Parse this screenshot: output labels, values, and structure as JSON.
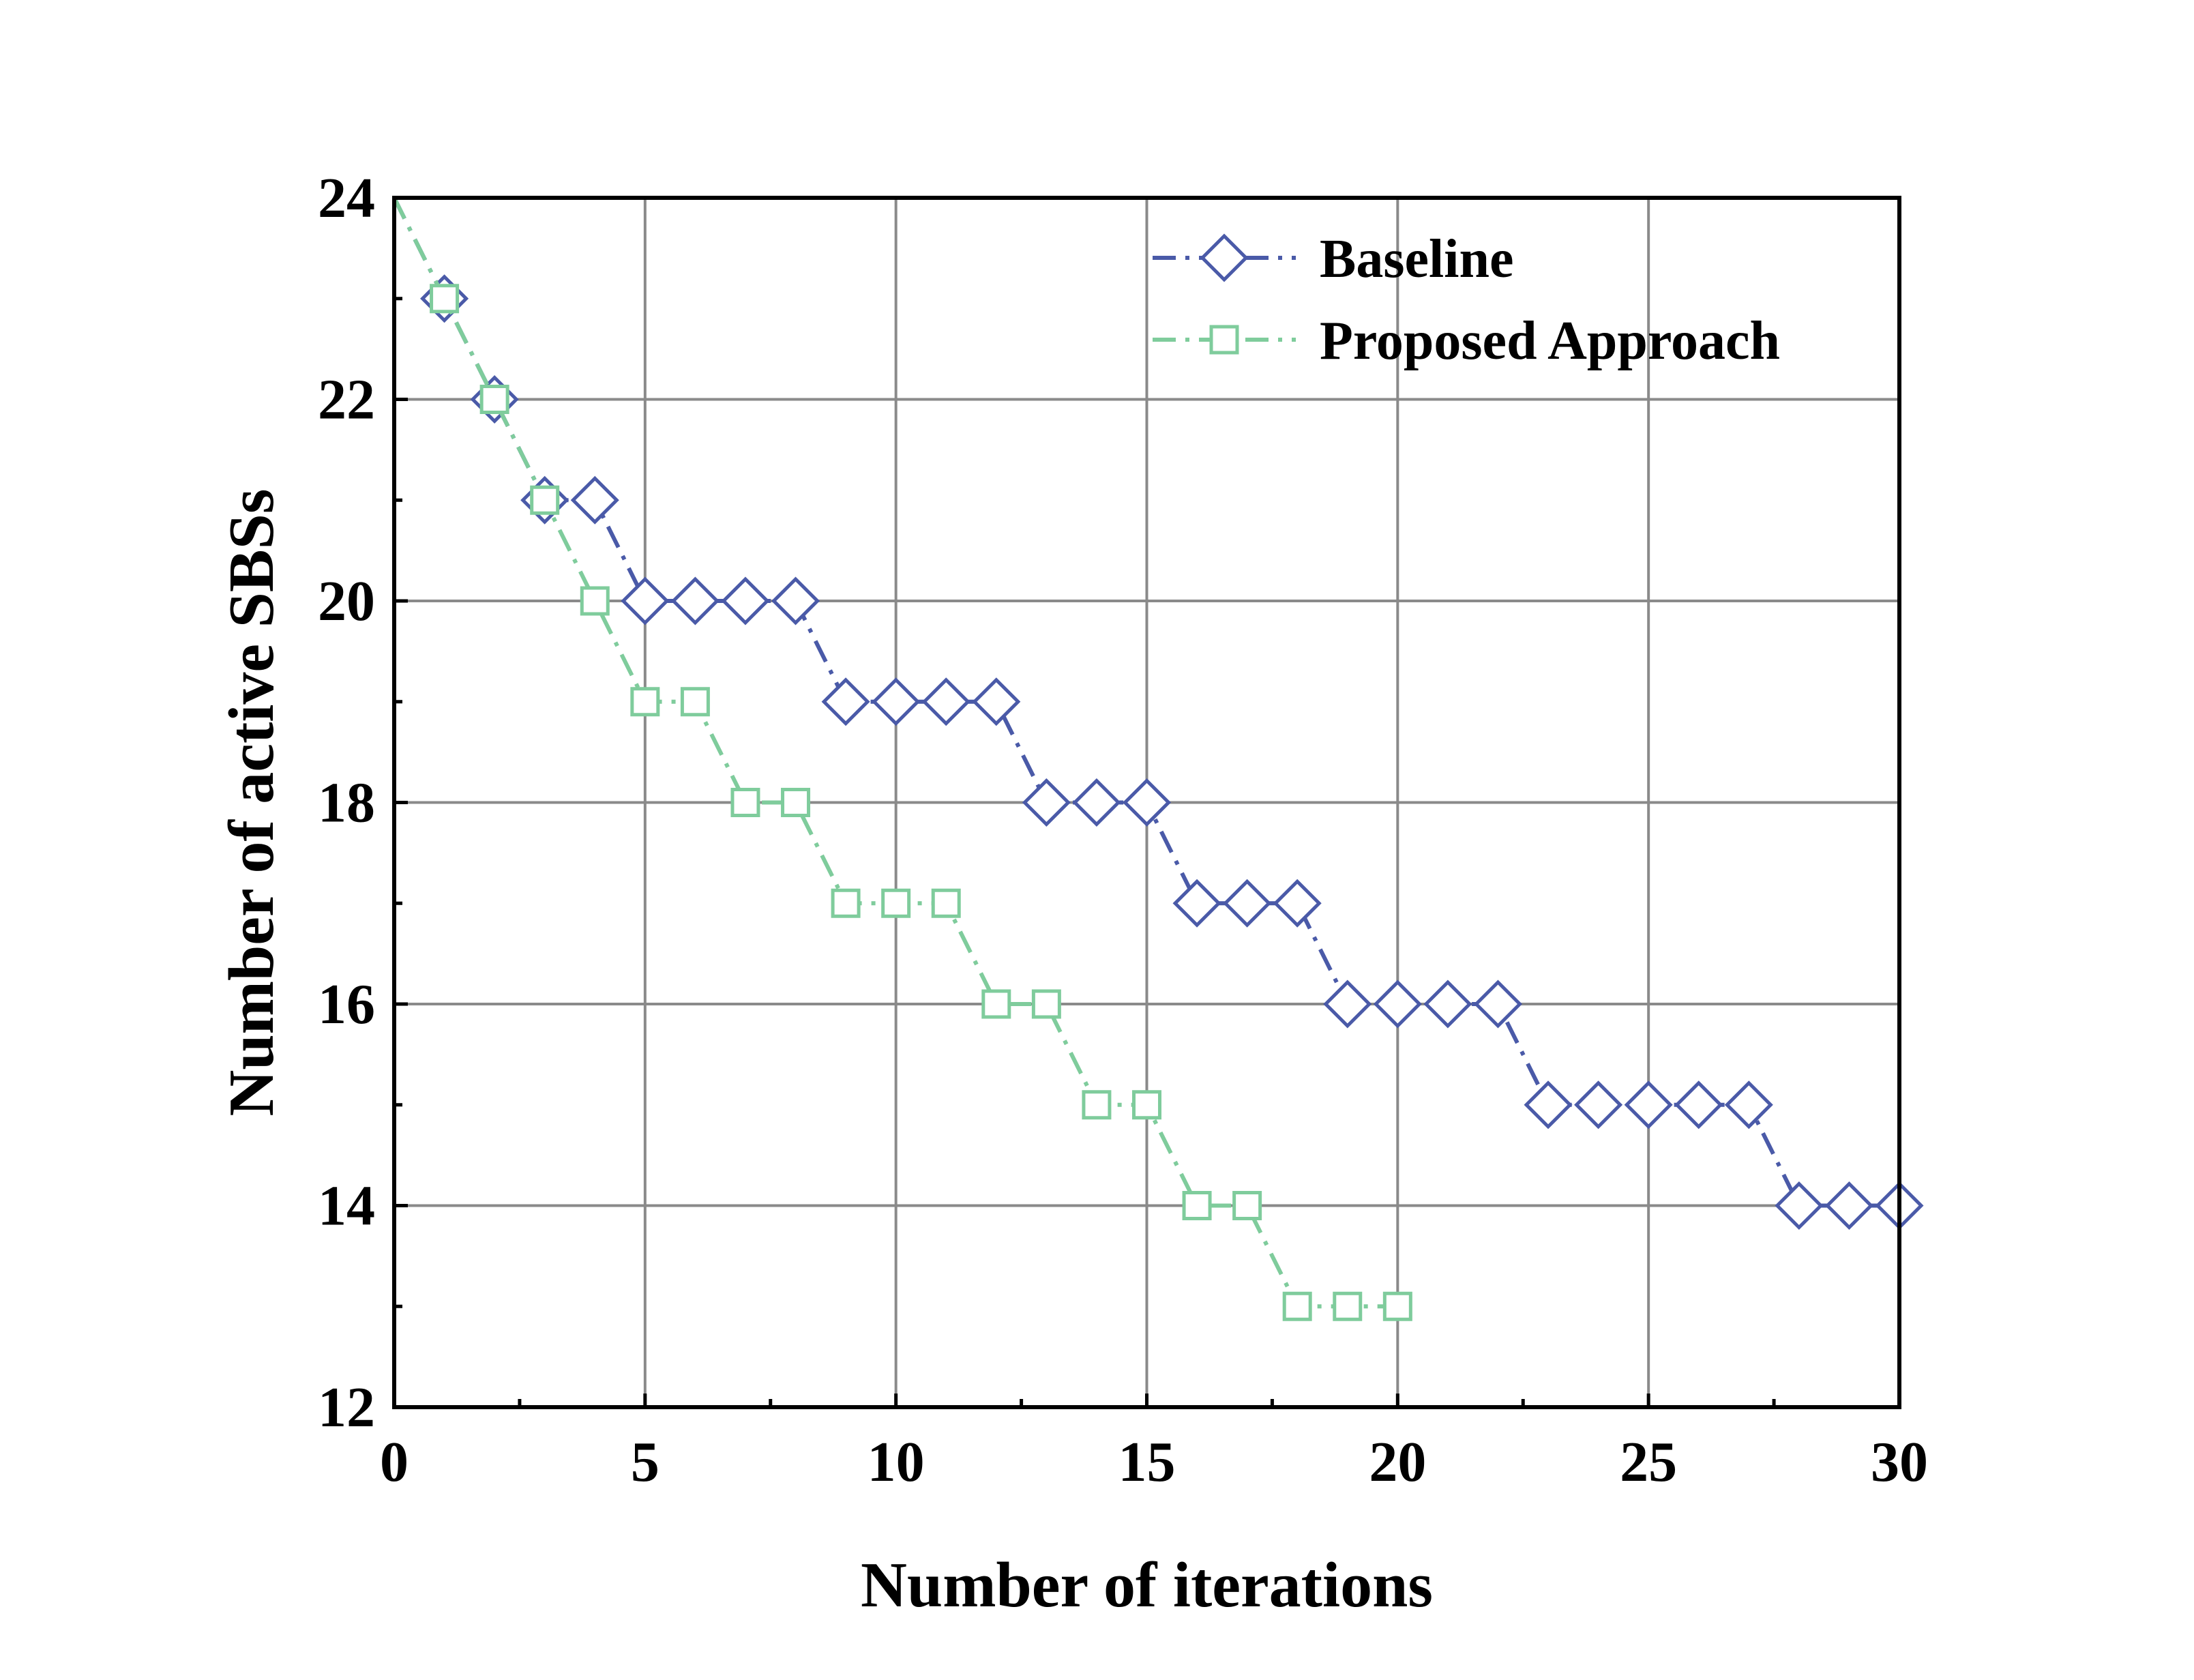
{
  "chart_data": {
    "type": "line",
    "title": "",
    "xlabel": "Number of iterations",
    "ylabel": "Number of active SBSs",
    "xlim": [
      0,
      30
    ],
    "ylim": [
      12,
      24
    ],
    "x_ticks": [
      0,
      5,
      10,
      15,
      20,
      25,
      30
    ],
    "y_ticks": [
      12,
      14,
      16,
      18,
      20,
      22,
      24
    ],
    "x_tick_labels": [
      "0",
      "5",
      "10",
      "15",
      "20",
      "25",
      "30"
    ],
    "y_tick_labels": [
      "12",
      "14",
      "16",
      "18",
      "20",
      "22",
      "24"
    ],
    "grid": true,
    "legend_position": "top-right",
    "series": [
      {
        "name": "Baseline",
        "color": "#4a5aa8",
        "marker": "diamond",
        "line_style": "dash-dot",
        "x": [
          0,
          1,
          2,
          3,
          4,
          5,
          6,
          7,
          8,
          9,
          10,
          11,
          12,
          13,
          14,
          15,
          16,
          17,
          18,
          19,
          20,
          21,
          22,
          23,
          24,
          25,
          26,
          27,
          28,
          29,
          30
        ],
        "y": [
          24,
          23,
          22,
          21,
          21,
          20,
          20,
          20,
          20,
          19,
          19,
          19,
          19,
          18,
          18,
          18,
          17,
          17,
          17,
          16,
          16,
          16,
          16,
          15,
          15,
          15,
          15,
          15,
          14,
          14,
          14
        ]
      },
      {
        "name": "Proposed Approach",
        "color": "#7fcc9c",
        "marker": "square",
        "line_style": "dash-dot",
        "x": [
          0,
          1,
          2,
          3,
          4,
          5,
          6,
          7,
          8,
          9,
          10,
          11,
          12,
          13,
          14,
          15,
          16,
          17,
          18,
          19,
          20
        ],
        "y": [
          24,
          23,
          22,
          21,
          20,
          19,
          19,
          18,
          18,
          17,
          17,
          17,
          16,
          16,
          15,
          15,
          14,
          14,
          13,
          13,
          13
        ]
      }
    ]
  }
}
